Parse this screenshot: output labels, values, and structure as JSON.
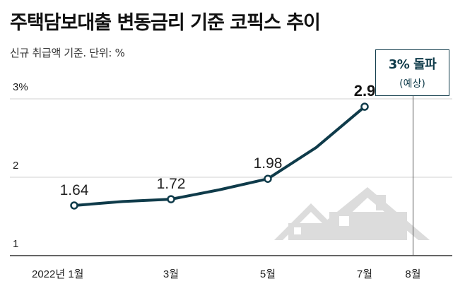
{
  "header": {
    "title": "주택담보대출 변동금리 기준 코픽스 추이",
    "subtitle": "신규 취급액 기준. 단위: %"
  },
  "callout": {
    "main": "3% 돌파",
    "sub": "(예상)"
  },
  "colors": {
    "line": "#0f3b4a",
    "grid": "#d0d0d0",
    "house": "#dcdcdc"
  },
  "chart_data": {
    "type": "line",
    "title": "주택담보대출 변동금리 기준 코픽스 추이",
    "subtitle": "신규 취급액 기준. 단위: %",
    "x": [
      "2022-01",
      "2022-02",
      "2022-03",
      "2022-04",
      "2022-05",
      "2022-06",
      "2022-07"
    ],
    "x_tick_labels": [
      {
        "x": "2022-01",
        "label": "2022년 1월"
      },
      {
        "x": "2022-03",
        "label": "3월"
      },
      {
        "x": "2022-05",
        "label": "5월"
      },
      {
        "x": "2022-07",
        "label": "7월"
      },
      {
        "x": "2022-08",
        "label": "8월"
      }
    ],
    "series": [
      {
        "values": [
          1.64,
          1.69,
          1.72,
          1.84,
          1.98,
          2.38,
          2.9
        ]
      }
    ],
    "data_labels": [
      {
        "x": "2022-01",
        "text": "1.64"
      },
      {
        "x": "2022-03",
        "text": "1.72"
      },
      {
        "x": "2022-05",
        "text": "1.98"
      },
      {
        "x": "2022-07",
        "text": "2.9"
      }
    ],
    "y_tick_labels": [
      "1",
      "2",
      "3%"
    ],
    "ylim": [
      1,
      3
    ],
    "xlim": [
      "2022-01",
      "2022-08"
    ],
    "grid": true,
    "annotation": {
      "x": "2022-08",
      "text": "3% 돌파",
      "subtext": "(예상)"
    }
  }
}
